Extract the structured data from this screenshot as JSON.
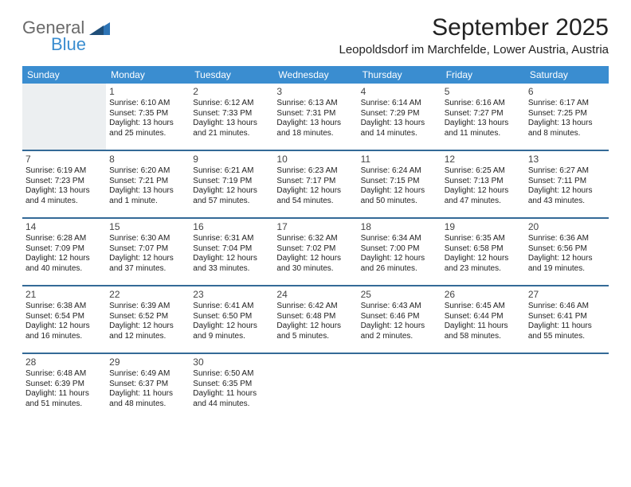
{
  "logo": {
    "text1": "General",
    "text2": "Blue"
  },
  "title": "September 2025",
  "location": "Leopoldsdorf im Marchfelde, Lower Austria, Austria",
  "colors": {
    "headerBg": "#3a8dd0",
    "sepBorder": "#346a97",
    "blankBg": "#eceff1"
  },
  "dayHeaders": [
    "Sunday",
    "Monday",
    "Tuesday",
    "Wednesday",
    "Thursday",
    "Friday",
    "Saturday"
  ],
  "weeks": [
    [
      {
        "blank": true
      },
      {
        "n": "1",
        "sr": "Sunrise: 6:10 AM",
        "ss": "Sunset: 7:35 PM",
        "dl": "Daylight: 13 hours and 25 minutes."
      },
      {
        "n": "2",
        "sr": "Sunrise: 6:12 AM",
        "ss": "Sunset: 7:33 PM",
        "dl": "Daylight: 13 hours and 21 minutes."
      },
      {
        "n": "3",
        "sr": "Sunrise: 6:13 AM",
        "ss": "Sunset: 7:31 PM",
        "dl": "Daylight: 13 hours and 18 minutes."
      },
      {
        "n": "4",
        "sr": "Sunrise: 6:14 AM",
        "ss": "Sunset: 7:29 PM",
        "dl": "Daylight: 13 hours and 14 minutes."
      },
      {
        "n": "5",
        "sr": "Sunrise: 6:16 AM",
        "ss": "Sunset: 7:27 PM",
        "dl": "Daylight: 13 hours and 11 minutes."
      },
      {
        "n": "6",
        "sr": "Sunrise: 6:17 AM",
        "ss": "Sunset: 7:25 PM",
        "dl": "Daylight: 13 hours and 8 minutes."
      }
    ],
    [
      {
        "n": "7",
        "sr": "Sunrise: 6:19 AM",
        "ss": "Sunset: 7:23 PM",
        "dl": "Daylight: 13 hours and 4 minutes."
      },
      {
        "n": "8",
        "sr": "Sunrise: 6:20 AM",
        "ss": "Sunset: 7:21 PM",
        "dl": "Daylight: 13 hours and 1 minute."
      },
      {
        "n": "9",
        "sr": "Sunrise: 6:21 AM",
        "ss": "Sunset: 7:19 PM",
        "dl": "Daylight: 12 hours and 57 minutes."
      },
      {
        "n": "10",
        "sr": "Sunrise: 6:23 AM",
        "ss": "Sunset: 7:17 PM",
        "dl": "Daylight: 12 hours and 54 minutes."
      },
      {
        "n": "11",
        "sr": "Sunrise: 6:24 AM",
        "ss": "Sunset: 7:15 PM",
        "dl": "Daylight: 12 hours and 50 minutes."
      },
      {
        "n": "12",
        "sr": "Sunrise: 6:25 AM",
        "ss": "Sunset: 7:13 PM",
        "dl": "Daylight: 12 hours and 47 minutes."
      },
      {
        "n": "13",
        "sr": "Sunrise: 6:27 AM",
        "ss": "Sunset: 7:11 PM",
        "dl": "Daylight: 12 hours and 43 minutes."
      }
    ],
    [
      {
        "n": "14",
        "sr": "Sunrise: 6:28 AM",
        "ss": "Sunset: 7:09 PM",
        "dl": "Daylight: 12 hours and 40 minutes."
      },
      {
        "n": "15",
        "sr": "Sunrise: 6:30 AM",
        "ss": "Sunset: 7:07 PM",
        "dl": "Daylight: 12 hours and 37 minutes."
      },
      {
        "n": "16",
        "sr": "Sunrise: 6:31 AM",
        "ss": "Sunset: 7:04 PM",
        "dl": "Daylight: 12 hours and 33 minutes."
      },
      {
        "n": "17",
        "sr": "Sunrise: 6:32 AM",
        "ss": "Sunset: 7:02 PM",
        "dl": "Daylight: 12 hours and 30 minutes."
      },
      {
        "n": "18",
        "sr": "Sunrise: 6:34 AM",
        "ss": "Sunset: 7:00 PM",
        "dl": "Daylight: 12 hours and 26 minutes."
      },
      {
        "n": "19",
        "sr": "Sunrise: 6:35 AM",
        "ss": "Sunset: 6:58 PM",
        "dl": "Daylight: 12 hours and 23 minutes."
      },
      {
        "n": "20",
        "sr": "Sunrise: 6:36 AM",
        "ss": "Sunset: 6:56 PM",
        "dl": "Daylight: 12 hours and 19 minutes."
      }
    ],
    [
      {
        "n": "21",
        "sr": "Sunrise: 6:38 AM",
        "ss": "Sunset: 6:54 PM",
        "dl": "Daylight: 12 hours and 16 minutes."
      },
      {
        "n": "22",
        "sr": "Sunrise: 6:39 AM",
        "ss": "Sunset: 6:52 PM",
        "dl": "Daylight: 12 hours and 12 minutes."
      },
      {
        "n": "23",
        "sr": "Sunrise: 6:41 AM",
        "ss": "Sunset: 6:50 PM",
        "dl": "Daylight: 12 hours and 9 minutes."
      },
      {
        "n": "24",
        "sr": "Sunrise: 6:42 AM",
        "ss": "Sunset: 6:48 PM",
        "dl": "Daylight: 12 hours and 5 minutes."
      },
      {
        "n": "25",
        "sr": "Sunrise: 6:43 AM",
        "ss": "Sunset: 6:46 PM",
        "dl": "Daylight: 12 hours and 2 minutes."
      },
      {
        "n": "26",
        "sr": "Sunrise: 6:45 AM",
        "ss": "Sunset: 6:44 PM",
        "dl": "Daylight: 11 hours and 58 minutes."
      },
      {
        "n": "27",
        "sr": "Sunrise: 6:46 AM",
        "ss": "Sunset: 6:41 PM",
        "dl": "Daylight: 11 hours and 55 minutes."
      }
    ],
    [
      {
        "n": "28",
        "sr": "Sunrise: 6:48 AM",
        "ss": "Sunset: 6:39 PM",
        "dl": "Daylight: 11 hours and 51 minutes."
      },
      {
        "n": "29",
        "sr": "Sunrise: 6:49 AM",
        "ss": "Sunset: 6:37 PM",
        "dl": "Daylight: 11 hours and 48 minutes."
      },
      {
        "n": "30",
        "sr": "Sunrise: 6:50 AM",
        "ss": "Sunset: 6:35 PM",
        "dl": "Daylight: 11 hours and 44 minutes."
      },
      {
        "blank": true
      },
      {
        "blank": true
      },
      {
        "blank": true
      },
      {
        "blank": true
      }
    ]
  ]
}
